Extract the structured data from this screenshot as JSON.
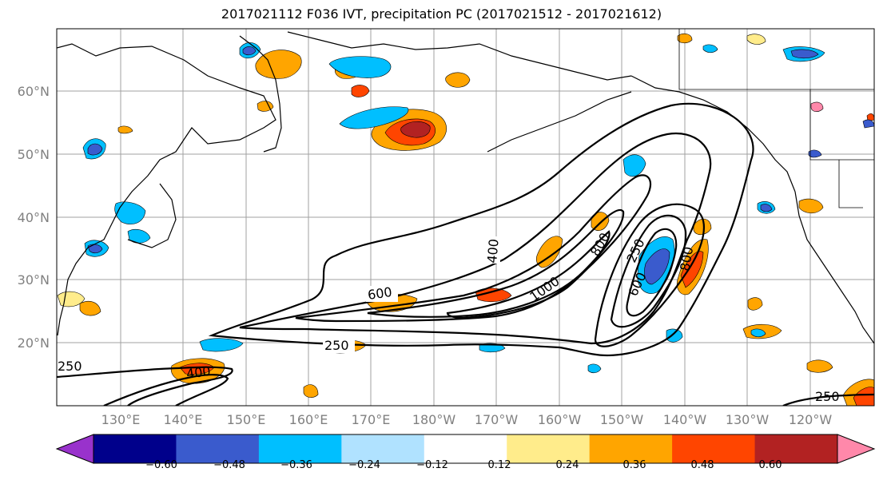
{
  "title": "2017021112 F036 IVT, precipitation PC (2017021512 - 2017021612)",
  "map": {
    "lat_labels": [
      "20°N",
      "30°N",
      "40°N",
      "50°N",
      "60°N"
    ],
    "lon_labels": [
      "130°E",
      "140°E",
      "150°E",
      "160°E",
      "170°E",
      "180°W",
      "170°W",
      "160°W",
      "150°W",
      "140°W",
      "130°W",
      "120°W"
    ],
    "contour_labels": [
      "400",
      "600",
      "800",
      "1000",
      "250",
      "600",
      "800",
      "250",
      "400",
      "250",
      "250"
    ],
    "contour_color": "#000000",
    "coast_color": "#000000",
    "grid_color": "#a0a0a0"
  },
  "colorbar": {
    "colors": [
      "#9932cc",
      "#00008b",
      "#3a5bcd",
      "#00bfff",
      "#b0e2ff",
      "#ffffff",
      "#ffec8b",
      "#ffa500",
      "#ff4500",
      "#b22222",
      "#ff88aa"
    ],
    "tick_labels": [
      "−0.60",
      "−0.48",
      "−0.36",
      "−0.24",
      "−0.12",
      "0.12",
      "0.24",
      "0.36",
      "0.48",
      "0.60"
    ]
  }
}
